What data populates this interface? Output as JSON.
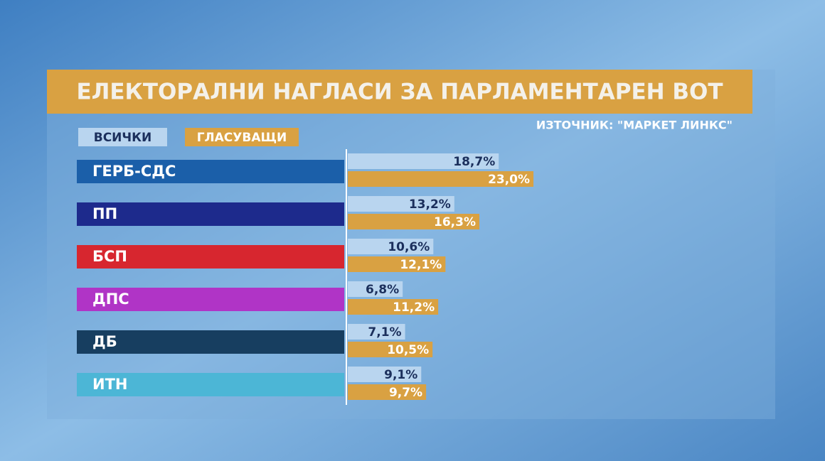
{
  "chart_data": {
    "type": "bar",
    "orientation": "horizontal",
    "title": "ЕЛЕКТОРАЛНИ НАГЛАСИ ЗА ПАРЛАМЕНТАРЕН ВОТ",
    "source": "ИЗТОЧНИК: \"МАРКЕТ ЛИНКС\"",
    "categories": [
      "ГЕРБ-СДС",
      "ПП",
      "БСП",
      "ДПС",
      "ДБ",
      "ИТН"
    ],
    "category_colors": [
      "#1b5fa9",
      "#1d2a8c",
      "#d7262f",
      "#b034c6",
      "#173e60",
      "#4cb6d6"
    ],
    "series": [
      {
        "name": "ВСИЧКИ",
        "color": "#b9d5ef",
        "label_color": "#1b2f5c",
        "values": [
          18.7,
          13.2,
          10.6,
          6.8,
          7.1,
          9.1
        ],
        "value_labels": [
          "18,7%",
          "13,2%",
          "10,6%",
          "6,8%",
          "7,1%",
          "9,1%"
        ]
      },
      {
        "name": "ГЛАСУВАЩИ",
        "color": "#d9a142",
        "label_color": "#ffffff",
        "values": [
          23.0,
          16.3,
          12.1,
          11.2,
          10.5,
          9.7
        ],
        "value_labels": [
          "23,0%",
          "16,3%",
          "12,1%",
          "11,2%",
          "10,5%",
          "9,7%"
        ]
      }
    ]
  }
}
